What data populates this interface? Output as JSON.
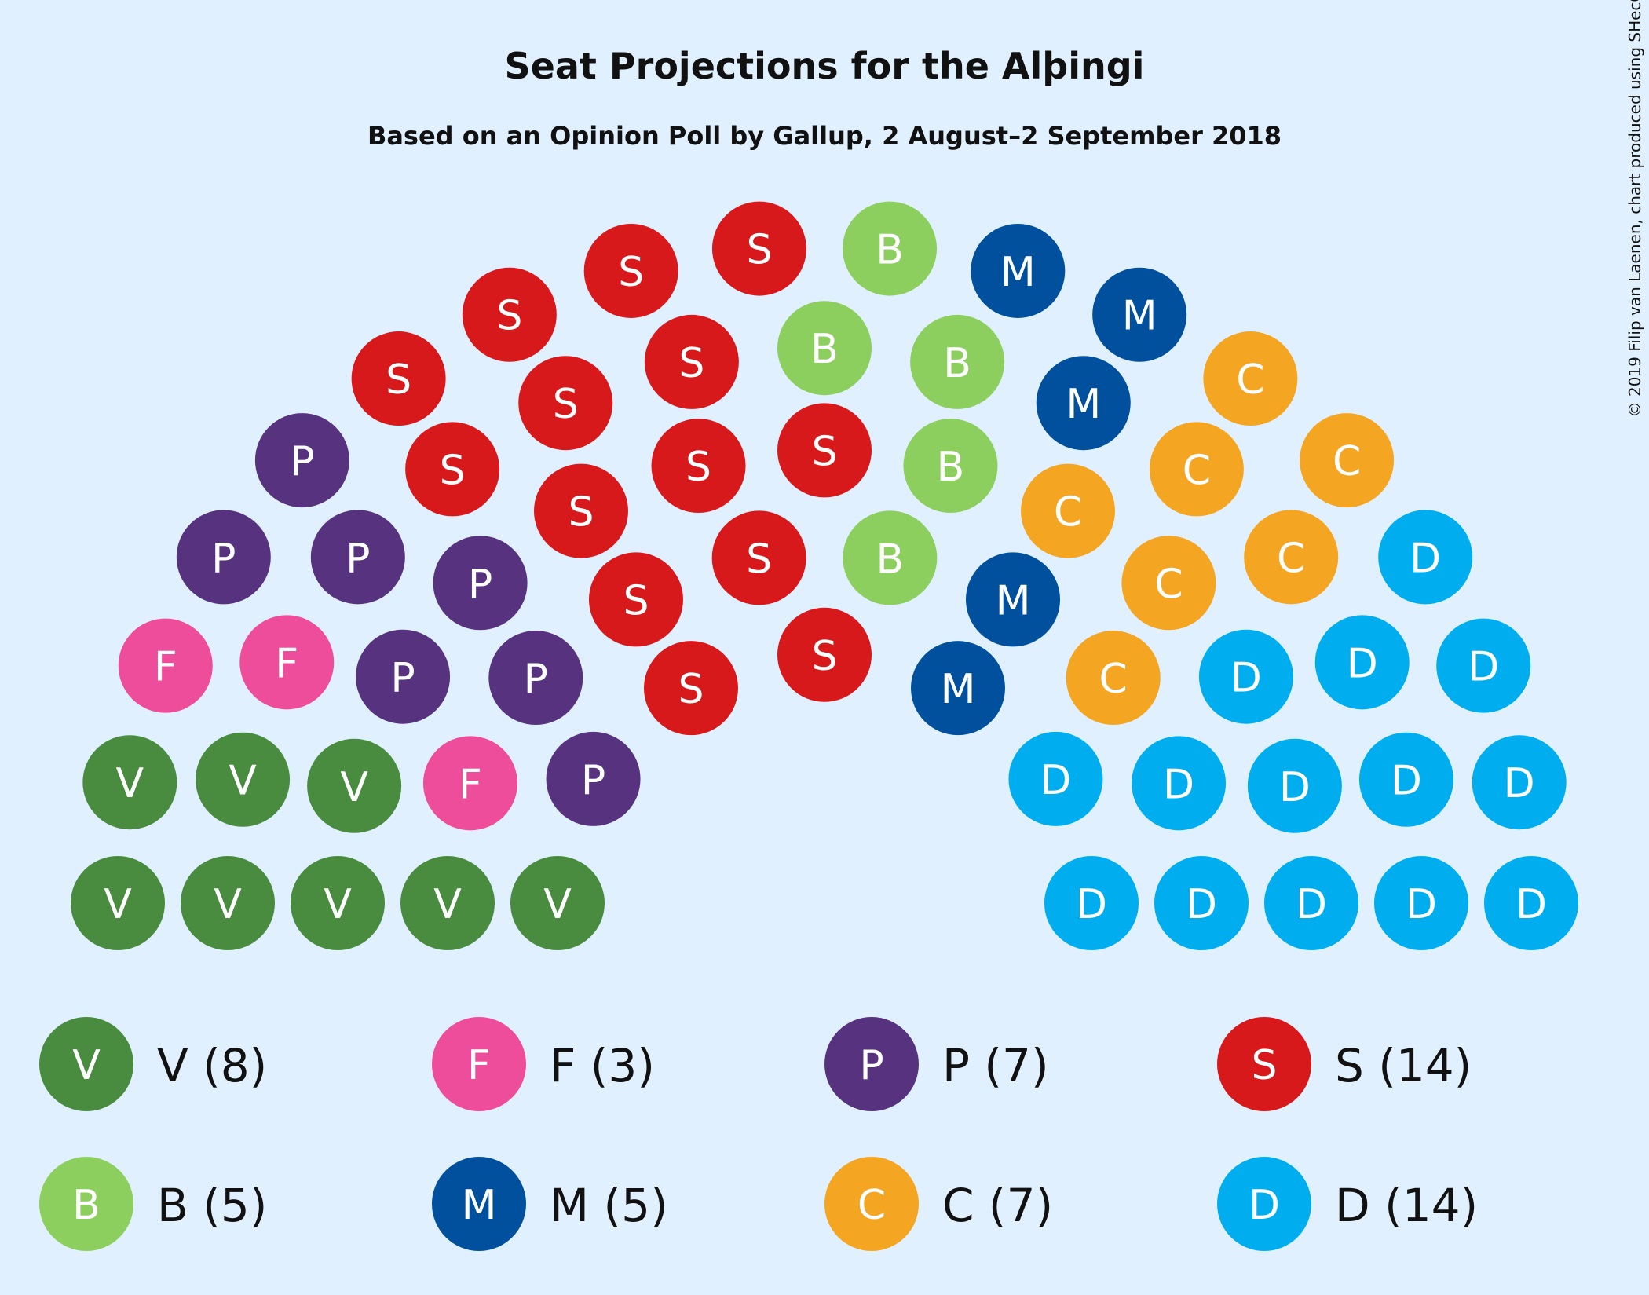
{
  "chart_data": {
    "type": "parliament",
    "title": "Seat Projections for the Alþingi",
    "subtitle": "Based on an Opinion Poll by Gallup, 2 August–2 September 2018",
    "credit": "© 2019 Filip van Laenen, chart produced using SHecC",
    "series": [
      {
        "name": "V",
        "color": "#4a8c3f",
        "value": 8,
        "value_label": "V (8)"
      },
      {
        "name": "F",
        "color": "#ee4d9b",
        "value": 3,
        "value_label": "F (3)"
      },
      {
        "name": "P",
        "color": "#56327f",
        "value": 7,
        "value_label": "P (7)"
      },
      {
        "name": "S",
        "color": "#d7191c",
        "value": 14,
        "value_label": "S (14)"
      },
      {
        "name": "B",
        "color": "#8dcf5f",
        "value": 5,
        "value_label": "B (5)"
      },
      {
        "name": "M",
        "color": "#00509e",
        "value": 5,
        "value_label": "M (5)"
      },
      {
        "name": "C",
        "color": "#f4a522",
        "value": 7,
        "value_label": "C (7)"
      },
      {
        "name": "D",
        "color": "#00aeef",
        "value": 14,
        "value_label": "D (14)"
      }
    ]
  }
}
